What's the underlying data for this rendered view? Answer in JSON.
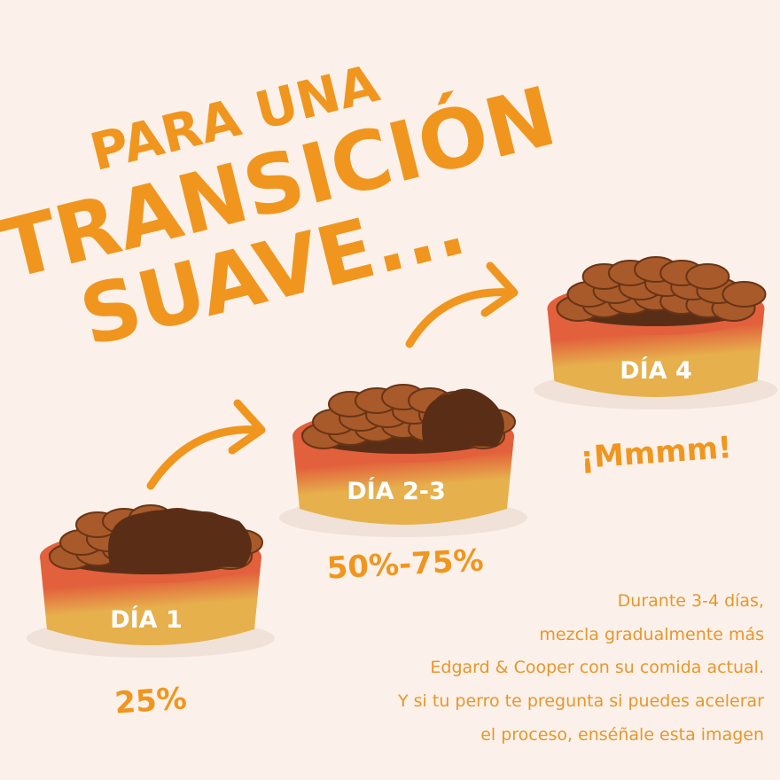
{
  "title": {
    "line1": "PARA UNA",
    "line2": "TRANSICIÓN",
    "line3": "SUAVE..."
  },
  "steps": [
    {
      "label": "DÍA 1",
      "caption": "25%"
    },
    {
      "label": "DÍA 2-3",
      "caption": "50%-75%"
    },
    {
      "label": "DÍA 4",
      "caption": "¡Mmmm!"
    }
  ],
  "description": [
    "Durante 3-4 días,",
    "mezcla gradualmente más",
    "Edgard & Cooper con su comida actual.",
    "Y si tu perro te pregunta si puedes acelerar",
    "el proceso, enséñale esta imagen"
  ]
}
